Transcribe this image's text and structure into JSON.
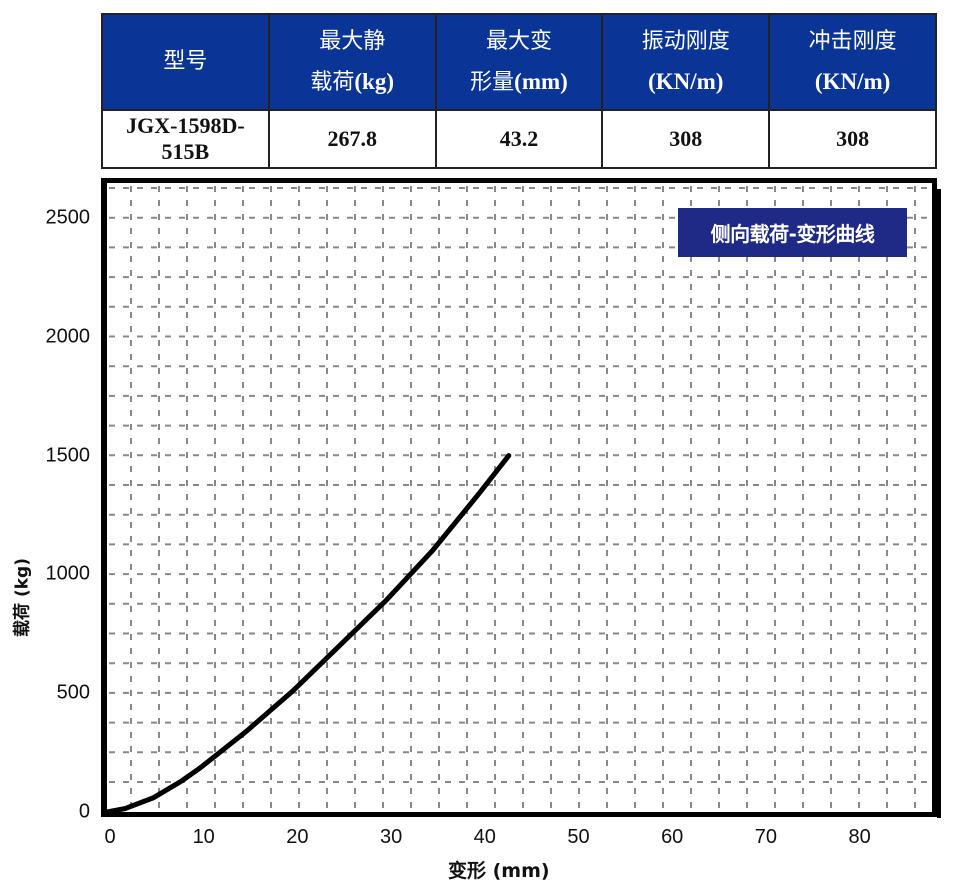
{
  "table": {
    "headers": [
      {
        "line1": "型号",
        "line2": "",
        "unit": ""
      },
      {
        "line1": "最大静",
        "line2": "载荷",
        "unit": "(kg)"
      },
      {
        "line1": "最大变",
        "line2": "形量",
        "unit": "(mm)"
      },
      {
        "line1": "振动刚度",
        "line2": "",
        "unit": "(KN/m)"
      },
      {
        "line1": "冲击刚度",
        "line2": "",
        "unit": "(KN/m)"
      }
    ],
    "row": [
      "JGX-1598D-515B",
      "267.8",
      "43.2",
      "308",
      "308"
    ],
    "header_bg": "#0a3596"
  },
  "chart_data": {
    "type": "line",
    "title": "侧向载荷-变形曲线",
    "xlabel": "变形 (mm)",
    "ylabel": "载荷 (kg)",
    "xlim": [
      0,
      90
    ],
    "ylim": [
      0,
      2600
    ],
    "x_ticks": [
      0,
      10,
      20,
      30,
      40,
      50,
      60,
      70,
      80
    ],
    "y_ticks": [
      0,
      500,
      1000,
      1500,
      2000,
      2500
    ],
    "grid": true,
    "legend_position": "top-right",
    "legend_bg": "#1e2a85",
    "series": [
      {
        "name": "侧向载荷-变形曲线",
        "x": [
          0,
          2,
          5,
          8,
          10,
          15,
          20,
          25,
          30,
          35,
          40,
          43.2
        ],
        "values": [
          0,
          15,
          60,
          130,
          185,
          340,
          510,
          700,
          890,
          1100,
          1340,
          1500
        ]
      }
    ]
  }
}
